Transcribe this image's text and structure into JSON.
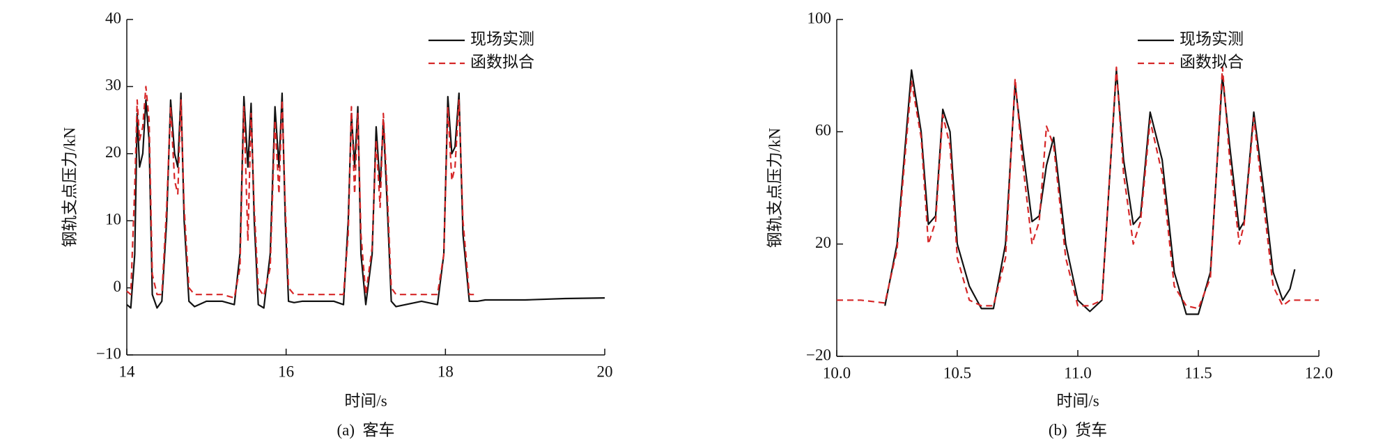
{
  "chart_data": [
    {
      "type": "line",
      "caption": "(a)  客车",
      "x_label": "时间/s",
      "y_label": "钢轨支点压力/kN",
      "legend": "upper right",
      "xlim": [
        14,
        20
      ],
      "xticks": [
        14,
        16,
        18,
        20
      ],
      "ylim": [
        -10,
        40
      ],
      "yticks": [
        {
          "value": -10,
          "label": "−10"
        },
        0,
        10,
        20,
        30,
        40
      ],
      "x": [
        14.0,
        14.05,
        14.1,
        14.13,
        14.16,
        14.2,
        14.24,
        14.28,
        14.32,
        14.38,
        14.44,
        14.5,
        14.55,
        14.6,
        14.64,
        14.68,
        14.72,
        14.78,
        14.85,
        15.0,
        15.2,
        15.35,
        15.42,
        15.47,
        15.52,
        15.56,
        15.6,
        15.65,
        15.72,
        15.8,
        15.86,
        15.91,
        15.95,
        15.99,
        16.03,
        16.1,
        16.2,
        16.4,
        16.6,
        16.72,
        16.78,
        16.82,
        16.86,
        16.9,
        16.94,
        17.0,
        17.08,
        17.13,
        17.18,
        17.22,
        17.27,
        17.32,
        17.38,
        17.5,
        17.7,
        17.9,
        17.98,
        18.03,
        18.08,
        18.12,
        18.17,
        18.22,
        18.3,
        18.4,
        18.5,
        19.0,
        19.5,
        20.0
      ],
      "series": [
        {
          "name": "现场实测",
          "color": "#111111",
          "dash": false,
          "values": [
            -2.5,
            -3,
            5,
            26,
            18,
            20,
            28,
            22,
            -1,
            -3,
            -2,
            10,
            28,
            20,
            18,
            29,
            10,
            -2,
            -2.8,
            -2,
            -2,
            -2.5,
            5,
            28.5,
            18,
            27.5,
            10,
            -2.5,
            -3,
            5,
            27,
            18,
            29,
            10,
            -2,
            -2.2,
            -2,
            -2,
            -2,
            -2.5,
            10,
            26,
            18,
            27,
            5,
            -2.5,
            5,
            24,
            15,
            25,
            12,
            -2,
            -2.8,
            -2.5,
            -2,
            -2.5,
            5,
            28.5,
            20,
            21,
            29,
            8,
            -2,
            -2,
            -1.8,
            -1.8,
            -1.6,
            -1.5
          ]
        },
        {
          "name": "函数拟合",
          "color": "#d62728",
          "dash": true,
          "values": [
            -0.5,
            -1,
            15,
            28,
            22,
            24,
            30,
            25,
            2,
            -1,
            -1,
            12,
            27,
            16,
            14,
            28,
            12,
            0,
            -1,
            -1,
            -1,
            -1.5,
            3,
            27,
            7,
            26,
            12,
            0,
            -1.2,
            3,
            25,
            14,
            28,
            12,
            0,
            -1,
            -1,
            -1,
            -1,
            -1,
            8,
            27,
            14,
            26,
            8,
            -1,
            6,
            22,
            12,
            26,
            14,
            0,
            -1,
            -1,
            -1,
            -1,
            5,
            27,
            16,
            18,
            28,
            10,
            -1,
            -1,
            null,
            null,
            null,
            null
          ]
        }
      ]
    },
    {
      "type": "line",
      "caption": "(b)  货车",
      "x_label": "时间/s",
      "y_label": "钢轨支点压力/kN",
      "legend": "upper right",
      "xlim": [
        10,
        12
      ],
      "xticks": [
        {
          "value": 10,
          "label": "10.0"
        },
        10.5,
        {
          "value": 11,
          "label": "11.0"
        },
        11.5,
        {
          "value": 12,
          "label": "12.0"
        }
      ],
      "ylim": [
        -20,
        100
      ],
      "yticks": [
        {
          "value": -20,
          "label": "−20"
        },
        20,
        60,
        100
      ],
      "x": [
        10.0,
        10.1,
        10.2,
        10.25,
        10.31,
        10.35,
        10.38,
        10.41,
        10.44,
        10.47,
        10.5,
        10.55,
        10.6,
        10.65,
        10.7,
        10.74,
        10.77,
        10.81,
        10.84,
        10.87,
        10.9,
        10.95,
        11.0,
        11.05,
        11.1,
        11.16,
        11.19,
        11.23,
        11.26,
        11.3,
        11.35,
        11.4,
        11.45,
        11.5,
        11.55,
        11.6,
        11.63,
        11.67,
        11.69,
        11.73,
        11.77,
        11.81,
        11.85,
        11.88,
        11.9,
        12.0
      ],
      "series": [
        {
          "name": "现场实测",
          "color": "#111111",
          "dash": false,
          "values": [
            null,
            null,
            -2,
            20,
            82,
            60,
            27,
            30,
            68,
            60,
            20,
            5,
            -3,
            -3,
            20,
            77,
            55,
            28,
            30,
            48,
            58,
            20,
            0,
            -4,
            0,
            82,
            50,
            27,
            30,
            67,
            50,
            10,
            -5,
            -5,
            10,
            80,
            55,
            25,
            28,
            67,
            40,
            10,
            0,
            4,
            11,
            null
          ]
        },
        {
          "name": "函数拟合",
          "color": "#d62728",
          "dash": true,
          "values": [
            0,
            0,
            -1,
            18,
            78,
            58,
            20,
            28,
            66,
            55,
            15,
            0,
            -2,
            -2,
            15,
            79,
            50,
            20,
            28,
            62,
            55,
            15,
            -2,
            -2,
            0,
            83,
            45,
            20,
            28,
            64,
            45,
            5,
            -2,
            -3,
            8,
            83,
            50,
            20,
            27,
            65,
            35,
            5,
            -2,
            0,
            0,
            0
          ]
        }
      ]
    }
  ]
}
